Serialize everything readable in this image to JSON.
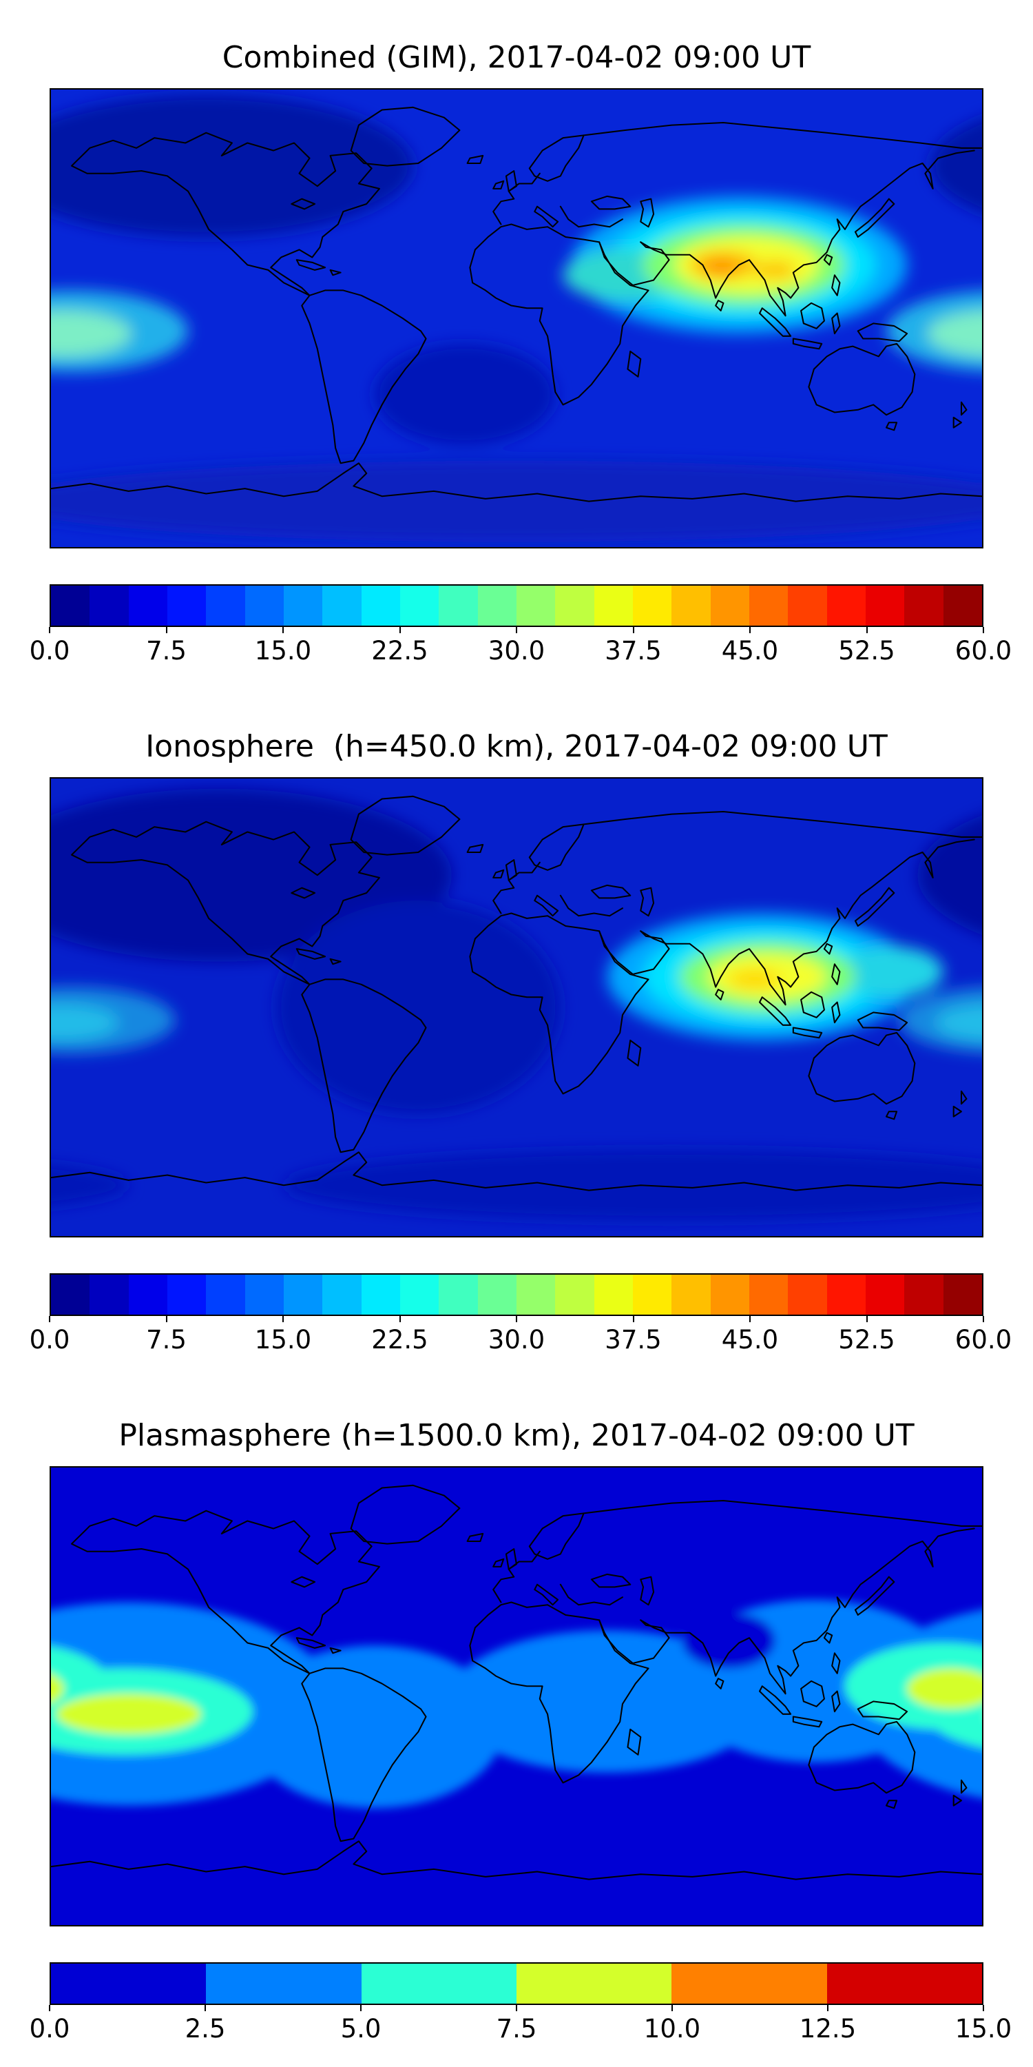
{
  "page": {
    "background": "#ffffff"
  },
  "panels": [
    {
      "title": "Combined (GIM), 2017-04-02 09:00 UT",
      "colorbar": {
        "ticks": [
          "0.0",
          "7.5",
          "15.0",
          "22.5",
          "30.0",
          "37.5",
          "45.0",
          "52.5",
          "60.0"
        ],
        "segments": [
          "#000095",
          "#0000bf",
          "#0000ea",
          "#0015ff",
          "#0040ff",
          "#006aff",
          "#0095ff",
          "#00bfff",
          "#00eaff",
          "#15ffea",
          "#40ffbf",
          "#6aff95",
          "#95ff6a",
          "#bfff40",
          "#eaff15",
          "#ffea00",
          "#ffbf00",
          "#ff9500",
          "#ff6a00",
          "#ff4000",
          "#ff1500",
          "#ea0000",
          "#bf0000",
          "#950000"
        ]
      }
    },
    {
      "title": "Ionosphere  (h=450.0 km), 2017-04-02 09:00 UT",
      "colorbar": {
        "ticks": [
          "0.0",
          "7.5",
          "15.0",
          "22.5",
          "30.0",
          "37.5",
          "45.0",
          "52.5",
          "60.0"
        ],
        "segments": [
          "#000095",
          "#0000bf",
          "#0000ea",
          "#0015ff",
          "#0040ff",
          "#006aff",
          "#0095ff",
          "#00bfff",
          "#00eaff",
          "#15ffea",
          "#40ffbf",
          "#6aff95",
          "#95ff6a",
          "#bfff40",
          "#eaff15",
          "#ffea00",
          "#ffbf00",
          "#ff9500",
          "#ff6a00",
          "#ff4000",
          "#ff1500",
          "#ea0000",
          "#bf0000",
          "#950000"
        ]
      }
    },
    {
      "title": "Plasmasphere (h=1500.0 km), 2017-04-02 09:00 UT",
      "colorbar": {
        "ticks": [
          "0.0",
          "2.5",
          "5.0",
          "7.5",
          "10.0",
          "12.5",
          "15.0"
        ],
        "segments": [
          "#0000d4",
          "#0080ff",
          "#2bffd4",
          "#d4ff2b",
          "#ff8000",
          "#d40000"
        ]
      }
    }
  ],
  "chart_data": [
    {
      "type": "contour_map",
      "title": "Combined (GIM), 2017-04-02 09:00 UT",
      "colormap": "jet",
      "projection": "equirectangular",
      "lon_range": [
        -180,
        180
      ],
      "lat_range": [
        -90,
        90
      ],
      "value_range": [
        0,
        60
      ],
      "contour_step": 2.5,
      "colorbar_tick_values": [
        0,
        7.5,
        15,
        22.5,
        30,
        37.5,
        45,
        52.5,
        60
      ],
      "grid": false,
      "legend": "colorbar-horizontal-bottom",
      "background_value": 8,
      "background_color": "#0726d8",
      "features": [
        {
          "name": "north-polar-low",
          "lon": -120,
          "lat": 60,
          "lon_radius": 80,
          "lat_radius": 28,
          "value": 4,
          "color": "#0113a6"
        },
        {
          "name": "south-polar-low",
          "lon": 0,
          "lat": -72,
          "lon_radius": 200,
          "lat_radius": 16,
          "value": 6,
          "color": "#0a20c0"
        },
        {
          "name": "south-atlantic-low",
          "lon": -20,
          "lat": -30,
          "lon_radius": 35,
          "lat_radius": 20,
          "value": 6,
          "color": "#0419b8"
        },
        {
          "name": "pacific-enhancement-outer",
          "lon": -172,
          "lat": -5,
          "lon_radius": 45,
          "lat_radius": 16,
          "value": 18,
          "color": "#23b0ea"
        },
        {
          "name": "pacific-enhancement-core",
          "lon": -175,
          "lat": -6,
          "lon_radius": 26,
          "lat_radius": 9,
          "value": 24,
          "color": "#7deec6"
        },
        {
          "name": "asia-anomaly-halo",
          "lon": 86,
          "lat": 21,
          "lon_radius": 65,
          "lat_radius": 27,
          "value": 18,
          "color": "#00a8ff"
        },
        {
          "name": "asia-anomaly-cyan",
          "lon": 87,
          "lat": 21,
          "lon_radius": 52,
          "lat_radius": 21,
          "value": 25,
          "color": "#00e2ff"
        },
        {
          "name": "mideast-arm",
          "lon": 42,
          "lat": 17,
          "lon_radius": 24,
          "lat_radius": 10,
          "value": 27,
          "color": "#2fd8d0"
        },
        {
          "name": "asia-anomaly-green",
          "lon": 88,
          "lat": 21,
          "lon_radius": 39,
          "lat_radius": 16,
          "value": 33,
          "color": "#7dff71"
        },
        {
          "name": "asia-anomaly-yellow",
          "lon": 89,
          "lat": 21,
          "lon_radius": 28,
          "lat_radius": 11,
          "value": 40,
          "color": "#f4ff2e"
        },
        {
          "name": "asia-anomaly-orange-west",
          "lon": 80,
          "lat": 21,
          "lon_radius": 13,
          "lat_radius": 5.5,
          "value": 47,
          "color": "#ffbb00"
        },
        {
          "name": "asia-anomaly-orange-east",
          "lon": 100,
          "lat": 19,
          "lon_radius": 8,
          "lat_radius": 3.5,
          "value": 46,
          "color": "#ffc300"
        },
        {
          "name": "asia-anomaly-peak",
          "lon": 79,
          "lat": 20,
          "lon_radius": 6,
          "lat_radius": 3,
          "value": 50,
          "color": "#ff8c00"
        }
      ]
    },
    {
      "type": "contour_map",
      "title": "Ionosphere  (h=450.0 km), 2017-04-02 09:00 UT",
      "colormap": "jet",
      "projection": "equirectangular",
      "lon_range": [
        -180,
        180
      ],
      "lat_range": [
        -90,
        90
      ],
      "value_range": [
        0,
        60
      ],
      "contour_step": 2.5,
      "colorbar_tick_values": [
        0,
        7.5,
        15,
        22.5,
        30,
        37.5,
        45,
        52.5,
        60
      ],
      "grid": false,
      "legend": "colorbar-horizontal-bottom",
      "background_value": 7,
      "background_color": "#0620cc",
      "features": [
        {
          "name": "north-polar-low",
          "lon": -115,
          "lat": 52,
          "lon_radius": 90,
          "lat_radius": 34,
          "value": 3,
          "color": "#0110a0"
        },
        {
          "name": "atlantic-low",
          "lon": -38,
          "lat": 0,
          "lon_radius": 55,
          "lat_radius": 42,
          "value": 5,
          "color": "#0317b4"
        },
        {
          "name": "south-polar-low",
          "lon": 60,
          "lat": -70,
          "lon_radius": 150,
          "lat_radius": 14,
          "value": 5,
          "color": "#0419b8"
        },
        {
          "name": "pacific-enhancement-outer",
          "lon": -172,
          "lat": -5,
          "lon_radius": 40,
          "lat_radius": 13,
          "value": 13,
          "color": "#1488e0"
        },
        {
          "name": "pacific-enhancement-core",
          "lon": -176,
          "lat": -6,
          "lon_radius": 22,
          "lat_radius": 7,
          "value": 16,
          "color": "#24bce8"
        },
        {
          "name": "asia-anomaly-halo",
          "lon": 95,
          "lat": 12,
          "lon_radius": 60,
          "lat_radius": 25,
          "value": 16,
          "color": "#00a8ff"
        },
        {
          "name": "asia-anomaly-cyan",
          "lon": 96,
          "lat": 12,
          "lon_radius": 47,
          "lat_radius": 19,
          "value": 23,
          "color": "#00e2ff"
        },
        {
          "name": "west-pacific-arm",
          "lon": 145,
          "lat": 14,
          "lon_radius": 20,
          "lat_radius": 10,
          "value": 22,
          "color": "#20d4e6"
        },
        {
          "name": "asia-anomaly-green",
          "lon": 97,
          "lat": 12,
          "lon_radius": 34,
          "lat_radius": 14,
          "value": 30,
          "color": "#7dff71"
        },
        {
          "name": "asia-anomaly-yellow",
          "lon": 97,
          "lat": 12,
          "lon_radius": 23,
          "lat_radius": 9,
          "value": 37,
          "color": "#f4ff2e"
        },
        {
          "name": "asia-anomaly-peak",
          "lon": 92,
          "lat": 11,
          "lon_radius": 10,
          "lat_radius": 4,
          "value": 41,
          "color": "#ffd900"
        }
      ]
    },
    {
      "type": "contour_map",
      "title": "Plasmasphere (h=1500.0 km), 2017-04-02 09:00 UT",
      "colormap": "jet",
      "projection": "equirectangular",
      "lon_range": [
        -180,
        180
      ],
      "lat_range": [
        -90,
        90
      ],
      "value_range": [
        0,
        15
      ],
      "contour_step": 2.5,
      "colorbar_tick_values": [
        0,
        2.5,
        5,
        7.5,
        10,
        12.5,
        15
      ],
      "grid": false,
      "legend": "colorbar-horizontal-bottom",
      "background_value": 1.5,
      "background_color": "#0000d4",
      "features": [
        {
          "name": "equatorial-band-pacific",
          "lon": -150,
          "lat": -3,
          "lon_radius": 80,
          "lat_radius": 40,
          "value": 3.5,
          "color": "#0080ff"
        },
        {
          "name": "equatorial-band-americas",
          "lon": -55,
          "lat": -12,
          "lon_radius": 50,
          "lat_radius": 32,
          "value": 3.5,
          "color": "#0080ff"
        },
        {
          "name": "equatorial-band-africa",
          "lon": 35,
          "lat": -2,
          "lon_radius": 62,
          "lat_radius": 28,
          "value": 3.5,
          "color": "#0080ff"
        },
        {
          "name": "equatorial-band-asia",
          "lon": 115,
          "lat": 6,
          "lon_radius": 55,
          "lat_radius": 32,
          "value": 3.5,
          "color": "#0080ff"
        },
        {
          "name": "turquoise-patch-left",
          "lon": -152,
          "lat": -6,
          "lon_radius": 50,
          "lat_radius": 17,
          "value": 6,
          "color": "#2bffd4"
        },
        {
          "name": "turquoise-patch-right",
          "lon": 165,
          "lat": 4,
          "lon_radius": 38,
          "lat_radius": 17,
          "value": 6,
          "color": "#2bffd4"
        },
        {
          "name": "green-core-left",
          "lon": -150,
          "lat": -7,
          "lon_radius": 28,
          "lat_radius": 8,
          "value": 9,
          "color": "#d4ff2b"
        },
        {
          "name": "green-core-right",
          "lon": 168,
          "lat": 3,
          "lon_radius": 17,
          "lat_radius": 8,
          "value": 9,
          "color": "#d4ff2b"
        },
        {
          "name": "india-depletion",
          "lon": 82,
          "lat": 22,
          "lon_radius": 18,
          "lat_radius": 11,
          "value": 2,
          "color": "#0000d4"
        }
      ]
    }
  ]
}
